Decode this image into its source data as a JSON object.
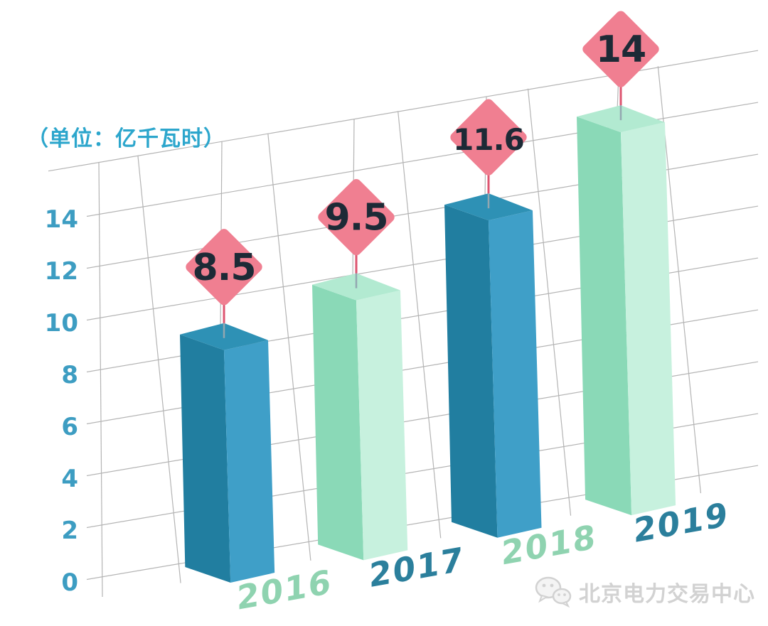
{
  "chart_data": {
    "type": "bar",
    "title": "",
    "unit_label": "（单位：亿千瓦时）",
    "categories": [
      "2016",
      "2017",
      "2018",
      "2019"
    ],
    "values": [
      8.5,
      9.5,
      11.6,
      14
    ],
    "value_labels": [
      "8.5",
      "9.5",
      "11.6",
      "14"
    ],
    "y_ticks": [
      "0",
      "2",
      "4",
      "6",
      "8",
      "10",
      "12",
      "14"
    ],
    "ylim": [
      0,
      16
    ],
    "grid": true,
    "legend": false,
    "perspective": "3d-skewed",
    "bar_schemes": [
      "blue",
      "mint",
      "blue",
      "mint"
    ],
    "year_label_colors": [
      "#8fd3b0",
      "#2b7f9c",
      "#8fd3b0",
      "#2b7f9c"
    ],
    "colors": {
      "blue_left": "#217ea0",
      "blue_right": "#3f9fc8",
      "blue_top": "#2e91b5",
      "mint_left": "#8ad9b7",
      "mint_right": "#c7f1de",
      "mint_top": "#b2ead1",
      "diamond_fill": "#f07f91",
      "diamond_text": "#1d2a36",
      "pin": "#dd5570",
      "pin_tip": "#93a7b0",
      "axis_text": "#3d9dc2",
      "unit_text": "#2ca6cc",
      "grid_line": "#9b9b9b",
      "background": "#ffffff"
    }
  },
  "watermark": {
    "text": "北京电力交易中心",
    "icon": "wechat-bubbles",
    "color": "#d2d2d2"
  }
}
